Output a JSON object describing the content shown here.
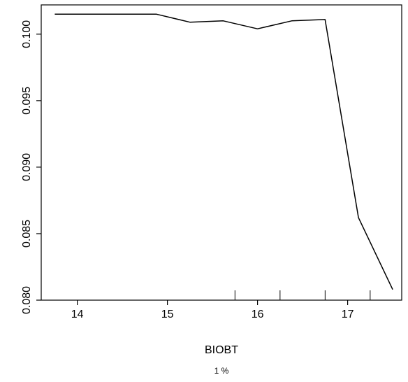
{
  "chart_data": {
    "type": "line",
    "title": "",
    "xlabel": "BIOBT",
    "sublabel": "1 %",
    "ylabel": "",
    "xlim": [
      13.6,
      17.6
    ],
    "ylim": [
      0.08,
      0.1022
    ],
    "x_ticks": [
      14,
      15,
      16,
      17
    ],
    "y_ticks": [
      0.08,
      0.085,
      0.09,
      0.095,
      0.1
    ],
    "y_tick_labels": [
      "0.080",
      "0.085",
      "0.090",
      "0.095",
      "0.100"
    ],
    "x_tick_labels": [
      "14",
      "15",
      "16",
      "17"
    ],
    "series": [
      {
        "x": [
          13.75,
          14.5,
          14.88,
          15.25,
          15.62,
          16.0,
          16.38,
          16.75,
          17.12,
          17.5
        ],
        "y": [
          0.1015,
          0.1015,
          0.1015,
          0.1009,
          0.101,
          0.1004,
          0.101,
          0.1011,
          0.0862,
          0.0808
        ],
        "color": "#000000"
      }
    ],
    "rug": [
      15.75,
      16.25,
      16.75,
      17.25
    ],
    "grid": false,
    "legend": "none"
  }
}
